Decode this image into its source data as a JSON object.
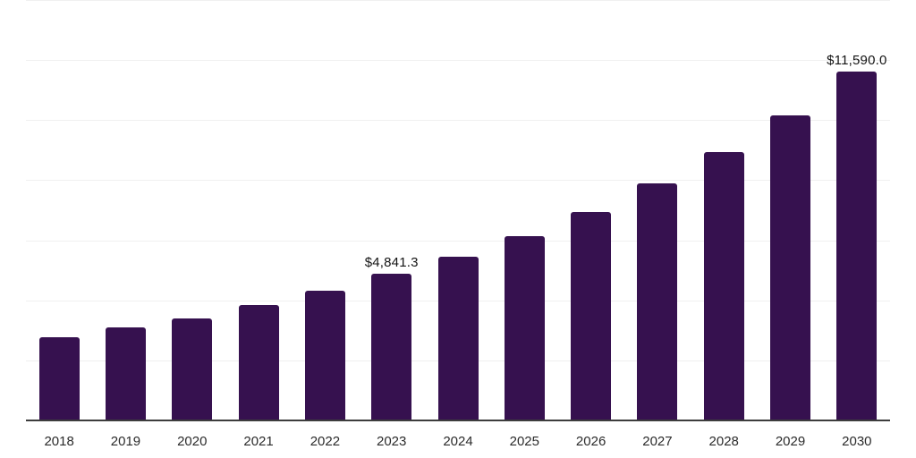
{
  "chart_data": {
    "type": "bar",
    "title": "",
    "xlabel": "",
    "ylabel": "",
    "categories": [
      "2018",
      "2019",
      "2020",
      "2021",
      "2022",
      "2023",
      "2024",
      "2025",
      "2026",
      "2027",
      "2028",
      "2029",
      "2030"
    ],
    "values": [
      2750,
      3055,
      3375,
      3810,
      4285,
      4841.3,
      5425,
      6110,
      6915,
      7860,
      8900,
      10130,
      11590
    ],
    "data_labels": [
      {
        "category": "2023",
        "text": "$4,841.3"
      },
      {
        "category": "2030",
        "text": "$11,590.0"
      }
    ],
    "ylim": [
      0,
      14000
    ],
    "gridline_step": 2000,
    "grid": "horizontal-only",
    "legend": "none",
    "y_axis_tick_labels": "none",
    "colors": {
      "bar": "#36114F",
      "gridline": "#f0f0f0",
      "axis": "#3d3d3d",
      "value_label": "#141414",
      "tick_label": "#2b2b2b",
      "background": "#ffffff"
    }
  }
}
